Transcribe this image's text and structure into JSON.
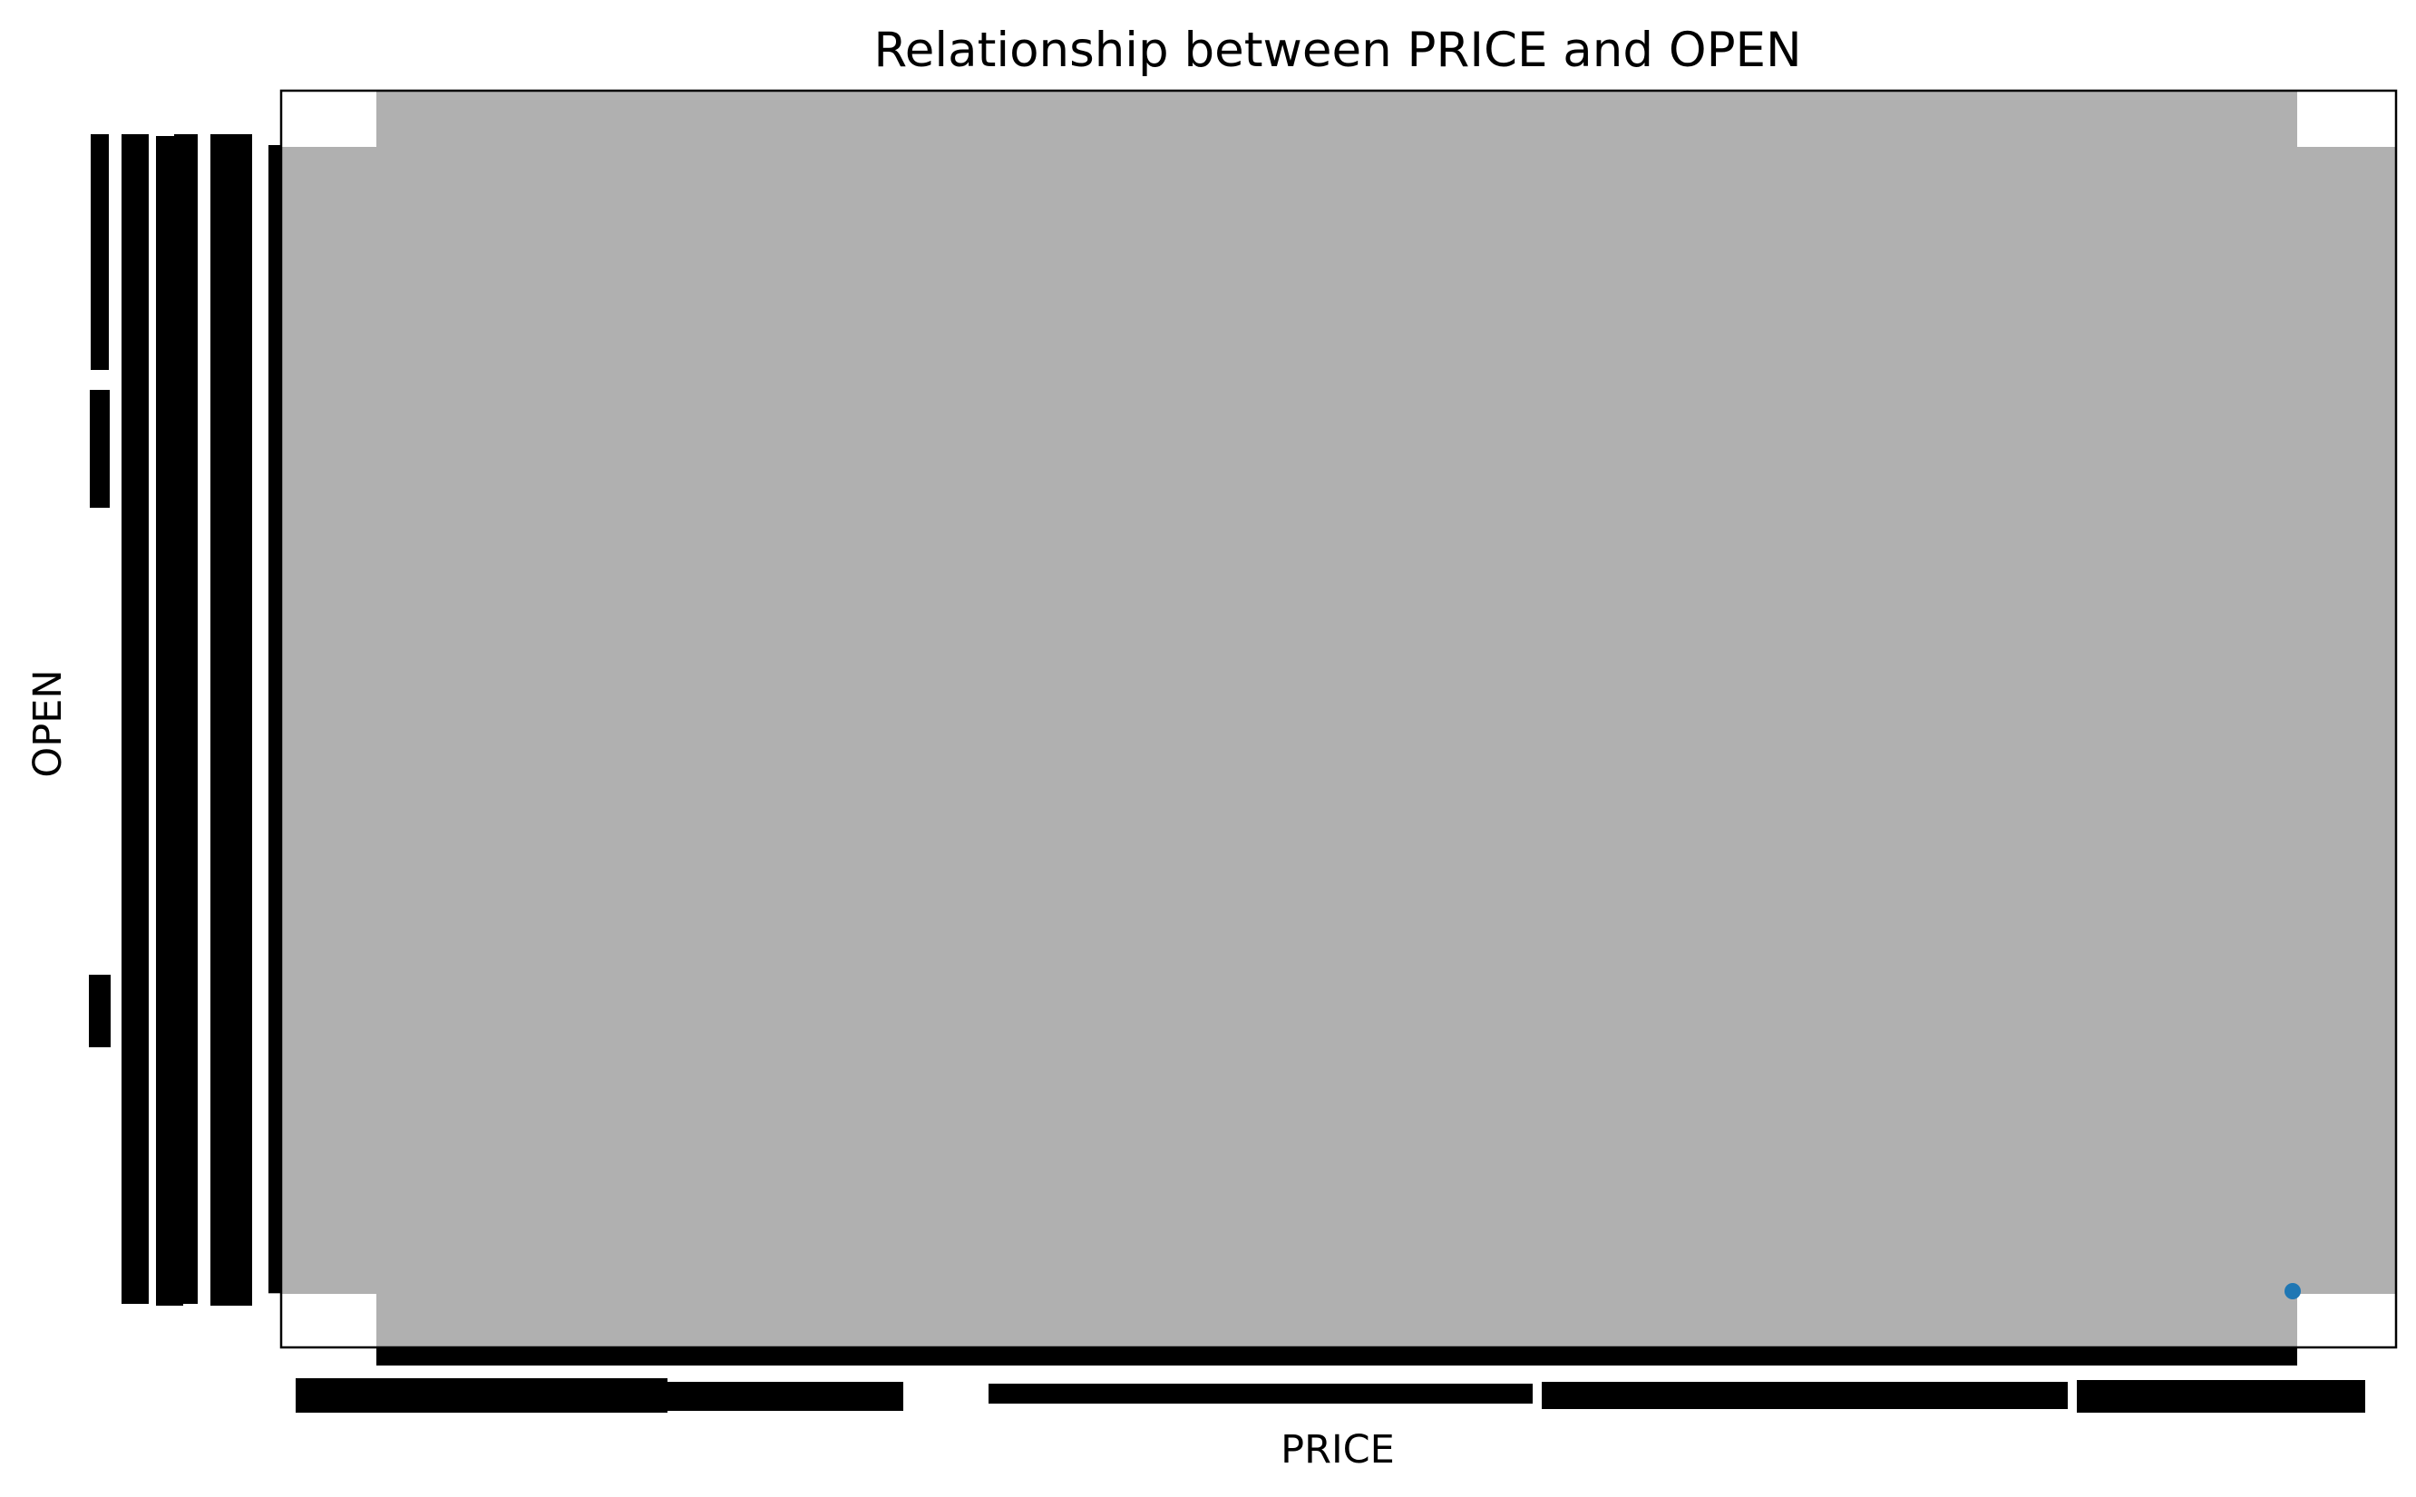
{
  "chart_data": {
    "type": "scatter",
    "title": "Relationship between PRICE and OPEN",
    "xlabel": "PRICE",
    "ylabel": "OPEN",
    "grid": false,
    "legend": "none",
    "note": "",
    "series": [
      {
        "marker_color": "#1f77b4",
        "points": []
      }
    ]
  },
  "colors": {
    "background": "#ffffff",
    "plot_fill": "#b0b0b0",
    "ink": "#000000",
    "marker": "#1f77b4"
  }
}
